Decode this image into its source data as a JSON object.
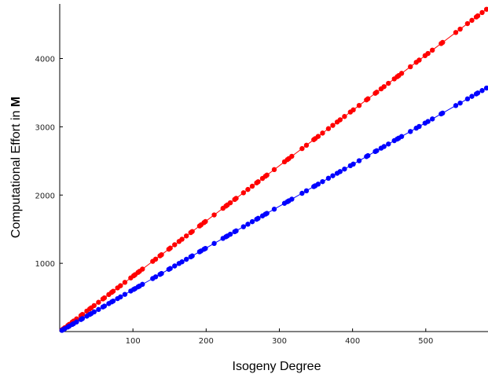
{
  "chart_data": {
    "type": "scatter",
    "xlabel": "Isogeny Degree",
    "ylabel_prefix": "Computational Effort in ",
    "ylabel_bold": "M",
    "xlim": [
      0,
      585
    ],
    "ylim": [
      0,
      4800
    ],
    "xticks": [
      100,
      200,
      300,
      400,
      500
    ],
    "yticks": [
      1000,
      2000,
      3000,
      4000
    ],
    "connected": true,
    "grid": false,
    "series": [
      {
        "color": "#ff0000",
        "slope": 8.1,
        "points": [
          [
            3,
            24
          ],
          [
            5,
            41
          ],
          [
            7,
            57
          ],
          [
            11,
            89
          ],
          [
            13,
            105
          ],
          [
            17,
            138
          ],
          [
            19,
            154
          ],
          [
            23,
            186
          ],
          [
            29,
            235
          ],
          [
            31,
            251
          ],
          [
            37,
            300
          ],
          [
            41,
            332
          ],
          [
            43,
            348
          ],
          [
            47,
            381
          ],
          [
            53,
            429
          ],
          [
            59,
            478
          ],
          [
            61,
            494
          ],
          [
            67,
            543
          ],
          [
            71,
            575
          ],
          [
            73,
            591
          ],
          [
            79,
            640
          ],
          [
            83,
            672
          ],
          [
            89,
            721
          ],
          [
            97,
            786
          ],
          [
            101,
            818
          ],
          [
            103,
            834
          ],
          [
            107,
            867
          ],
          [
            109,
            883
          ],
          [
            113,
            915
          ],
          [
            127,
            1029
          ],
          [
            131,
            1061
          ],
          [
            137,
            1110
          ],
          [
            139,
            1126
          ],
          [
            149,
            1207
          ],
          [
            151,
            1223
          ],
          [
            157,
            1272
          ],
          [
            163,
            1320
          ],
          [
            167,
            1353
          ],
          [
            173,
            1401
          ],
          [
            179,
            1450
          ],
          [
            181,
            1466
          ],
          [
            191,
            1547
          ],
          [
            193,
            1563
          ],
          [
            197,
            1596
          ],
          [
            199,
            1612
          ],
          [
            211,
            1709
          ],
          [
            223,
            1806
          ],
          [
            227,
            1839
          ],
          [
            229,
            1855
          ],
          [
            233,
            1887
          ],
          [
            239,
            1936
          ],
          [
            241,
            1952
          ],
          [
            251,
            2033
          ],
          [
            257,
            2082
          ],
          [
            263,
            2130
          ],
          [
            269,
            2179
          ],
          [
            271,
            2195
          ],
          [
            277,
            2244
          ],
          [
            281,
            2276
          ],
          [
            283,
            2292
          ],
          [
            293,
            2373
          ],
          [
            307,
            2487
          ],
          [
            311,
            2519
          ],
          [
            313,
            2535
          ],
          [
            317,
            2568
          ],
          [
            331,
            2681
          ],
          [
            337,
            2730
          ],
          [
            347,
            2811
          ],
          [
            349,
            2827
          ],
          [
            353,
            2859
          ],
          [
            359,
            2908
          ],
          [
            367,
            2973
          ],
          [
            373,
            3021
          ],
          [
            379,
            3070
          ],
          [
            383,
            3102
          ],
          [
            389,
            3151
          ],
          [
            397,
            3216
          ],
          [
            401,
            3248
          ],
          [
            409,
            3313
          ],
          [
            419,
            3394
          ],
          [
            421,
            3410
          ],
          [
            431,
            3491
          ],
          [
            433,
            3507
          ],
          [
            439,
            3556
          ],
          [
            443,
            3588
          ],
          [
            449,
            3637
          ],
          [
            457,
            3702
          ],
          [
            461,
            3734
          ],
          [
            463,
            3750
          ],
          [
            467,
            3783
          ],
          [
            479,
            3880
          ],
          [
            487,
            3945
          ],
          [
            491,
            3977
          ],
          [
            499,
            4042
          ],
          [
            503,
            4074
          ],
          [
            509,
            4123
          ],
          [
            521,
            4220
          ],
          [
            523,
            4236
          ],
          [
            541,
            4382
          ],
          [
            547,
            4431
          ],
          [
            557,
            4512
          ],
          [
            563,
            4560
          ],
          [
            569,
            4609
          ],
          [
            571,
            4625
          ],
          [
            577,
            4674
          ],
          [
            583,
            4722
          ]
        ]
      },
      {
        "color": "#0000ff",
        "slope": 6.12,
        "points": [
          [
            3,
            18
          ],
          [
            5,
            31
          ],
          [
            7,
            43
          ],
          [
            11,
            67
          ],
          [
            13,
            80
          ],
          [
            17,
            104
          ],
          [
            19,
            116
          ],
          [
            23,
            141
          ],
          [
            29,
            177
          ],
          [
            31,
            190
          ],
          [
            37,
            226
          ],
          [
            41,
            251
          ],
          [
            43,
            263
          ],
          [
            47,
            288
          ],
          [
            53,
            324
          ],
          [
            59,
            361
          ],
          [
            61,
            373
          ],
          [
            67,
            410
          ],
          [
            71,
            435
          ],
          [
            73,
            447
          ],
          [
            79,
            483
          ],
          [
            83,
            508
          ],
          [
            89,
            545
          ],
          [
            97,
            594
          ],
          [
            101,
            618
          ],
          [
            103,
            630
          ],
          [
            107,
            655
          ],
          [
            109,
            667
          ],
          [
            113,
            692
          ],
          [
            127,
            777
          ],
          [
            131,
            802
          ],
          [
            137,
            838
          ],
          [
            139,
            851
          ],
          [
            149,
            912
          ],
          [
            151,
            924
          ],
          [
            157,
            961
          ],
          [
            163,
            998
          ],
          [
            167,
            1022
          ],
          [
            173,
            1059
          ],
          [
            179,
            1095
          ],
          [
            181,
            1108
          ],
          [
            191,
            1169
          ],
          [
            193,
            1181
          ],
          [
            197,
            1206
          ],
          [
            199,
            1218
          ],
          [
            211,
            1291
          ],
          [
            223,
            1365
          ],
          [
            227,
            1389
          ],
          [
            229,
            1401
          ],
          [
            233,
            1426
          ],
          [
            239,
            1463
          ],
          [
            241,
            1475
          ],
          [
            251,
            1536
          ],
          [
            257,
            1573
          ],
          [
            263,
            1610
          ],
          [
            269,
            1646
          ],
          [
            271,
            1659
          ],
          [
            277,
            1695
          ],
          [
            281,
            1720
          ],
          [
            283,
            1732
          ],
          [
            293,
            1793
          ],
          [
            307,
            1879
          ],
          [
            311,
            1903
          ],
          [
            313,
            1916
          ],
          [
            317,
            1940
          ],
          [
            331,
            2026
          ],
          [
            337,
            2062
          ],
          [
            347,
            2124
          ],
          [
            349,
            2136
          ],
          [
            353,
            2160
          ],
          [
            359,
            2197
          ],
          [
            367,
            2246
          ],
          [
            373,
            2283
          ],
          [
            379,
            2319
          ],
          [
            383,
            2344
          ],
          [
            389,
            2381
          ],
          [
            397,
            2430
          ],
          [
            401,
            2454
          ],
          [
            409,
            2503
          ],
          [
            419,
            2564
          ],
          [
            421,
            2577
          ],
          [
            431,
            2638
          ],
          [
            433,
            2650
          ],
          [
            439,
            2687
          ],
          [
            443,
            2711
          ],
          [
            449,
            2748
          ],
          [
            457,
            2797
          ],
          [
            461,
            2821
          ],
          [
            463,
            2834
          ],
          [
            467,
            2858
          ],
          [
            479,
            2931
          ],
          [
            487,
            2980
          ],
          [
            491,
            3005
          ],
          [
            499,
            3054
          ],
          [
            503,
            3078
          ],
          [
            509,
            3115
          ],
          [
            521,
            3189
          ],
          [
            523,
            3201
          ],
          [
            541,
            3311
          ],
          [
            547,
            3348
          ],
          [
            557,
            3409
          ],
          [
            563,
            3446
          ],
          [
            569,
            3482
          ],
          [
            571,
            3495
          ],
          [
            577,
            3531
          ],
          [
            583,
            3568
          ]
        ]
      }
    ]
  }
}
